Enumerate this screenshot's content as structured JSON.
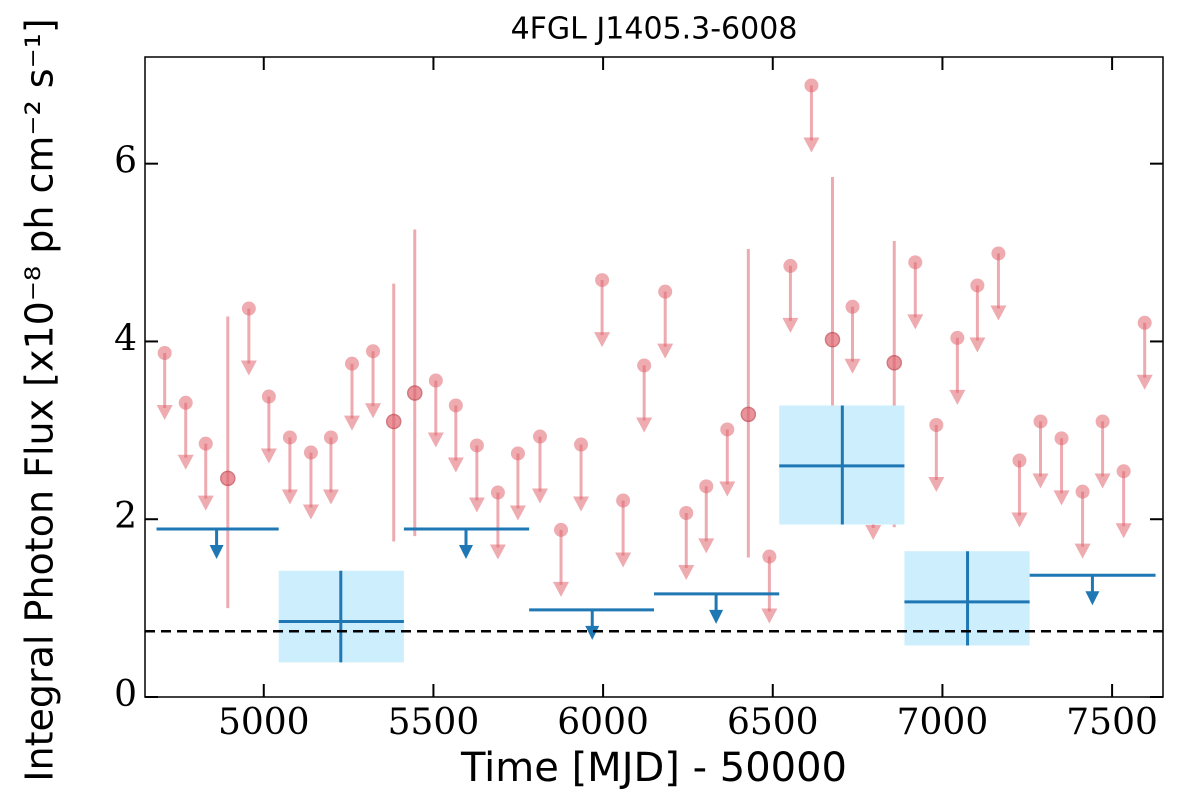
{
  "chart_data": {
    "type": "lightcurve",
    "title": "4FGL J1405.3-6008",
    "x_label": "Time [MJD] - 50000",
    "y_label": "Integral Photon Flux [x10⁻⁸ ph cm⁻² s⁻¹]",
    "xlim": [
      4650,
      7650
    ],
    "ylim": [
      0,
      7.2
    ],
    "xticks": [
      5000,
      5500,
      6000,
      6500,
      7000,
      7500
    ],
    "yticks": [
      0,
      2,
      4,
      6
    ],
    "reference_line": 0.74,
    "reference_color": "#000000",
    "series": [
      {
        "color": "#e06670",
        "x": [
          4708,
          4770,
          4829,
          4894,
          4956,
          5015,
          5077,
          5139,
          5198,
          5260,
          5322,
          5383,
          5445,
          5507,
          5566,
          5628,
          5690,
          5749,
          5814,
          5876,
          5935,
          5997,
          6059,
          6121,
          6183,
          6245,
          6304,
          6366,
          6428,
          6490,
          6552,
          6614,
          6676,
          6735,
          6796,
          6858,
          6920,
          6982,
          7044,
          7103,
          7165,
          7227,
          7289,
          7351,
          7413,
          7472,
          7534,
          7596
        ],
        "values": [
          3.87,
          3.31,
          2.85,
          2.46,
          4.37,
          3.38,
          2.92,
          2.75,
          2.92,
          3.75,
          3.89,
          3.1,
          3.42,
          3.56,
          3.28,
          2.83,
          2.3,
          2.74,
          2.93,
          1.88,
          2.84,
          4.69,
          2.21,
          3.73,
          4.56,
          2.07,
          2.37,
          3.01,
          3.18,
          1.58,
          4.85,
          6.88,
          4.02,
          4.39,
          2.52,
          3.76,
          4.89,
          3.06,
          4.04,
          4.63,
          4.99,
          2.66,
          3.1,
          2.91,
          2.31,
          3.1,
          2.54,
          4.21
        ],
        "lower": [
          null,
          null,
          null,
          1.0,
          null,
          null,
          null,
          null,
          null,
          null,
          null,
          1.75,
          1.81,
          null,
          null,
          null,
          null,
          null,
          null,
          null,
          null,
          null,
          null,
          null,
          null,
          null,
          null,
          null,
          1.57,
          null,
          null,
          null,
          2.42,
          null,
          null,
          1.91,
          null,
          null,
          null,
          null,
          null,
          null,
          null,
          null,
          null,
          null,
          null,
          null
        ],
        "upper": [
          null,
          null,
          null,
          4.28,
          null,
          null,
          null,
          null,
          null,
          null,
          null,
          4.65,
          5.26,
          null,
          null,
          null,
          null,
          null,
          null,
          null,
          null,
          null,
          null,
          null,
          null,
          null,
          null,
          null,
          5.04,
          null,
          null,
          null,
          5.85,
          null,
          null,
          5.13,
          null,
          null,
          null,
          null,
          null,
          null,
          null,
          null,
          null,
          null,
          null,
          null
        ],
        "upper_limit": [
          true,
          true,
          true,
          false,
          true,
          true,
          true,
          true,
          true,
          true,
          true,
          false,
          false,
          true,
          true,
          true,
          true,
          true,
          true,
          true,
          true,
          true,
          true,
          true,
          true,
          true,
          true,
          true,
          false,
          true,
          true,
          true,
          false,
          true,
          true,
          false,
          true,
          true,
          true,
          true,
          true,
          true,
          true,
          true,
          true,
          true,
          true,
          true
        ]
      },
      {
        "color": "#1f77b4",
        "box_color": "#cdeefc",
        "x": [
          4861,
          5227,
          5596,
          5968,
          6333,
          6705,
          7074,
          7442
        ],
        "x_start": [
          4684,
          5044,
          5413,
          5782,
          6150,
          6519,
          6888,
          7257
        ],
        "x_end": [
          5044,
          5413,
          5782,
          6150,
          6519,
          6888,
          7257,
          7628
        ],
        "values": [
          1.89,
          0.85,
          1.89,
          0.98,
          1.16,
          2.6,
          1.07,
          1.37
        ],
        "lower": [
          null,
          0.39,
          null,
          null,
          null,
          1.94,
          0.58,
          null
        ],
        "upper": [
          null,
          1.42,
          null,
          null,
          null,
          3.28,
          1.64,
          null
        ],
        "upper_limit": [
          true,
          false,
          true,
          true,
          true,
          false,
          false,
          true
        ]
      }
    ]
  }
}
